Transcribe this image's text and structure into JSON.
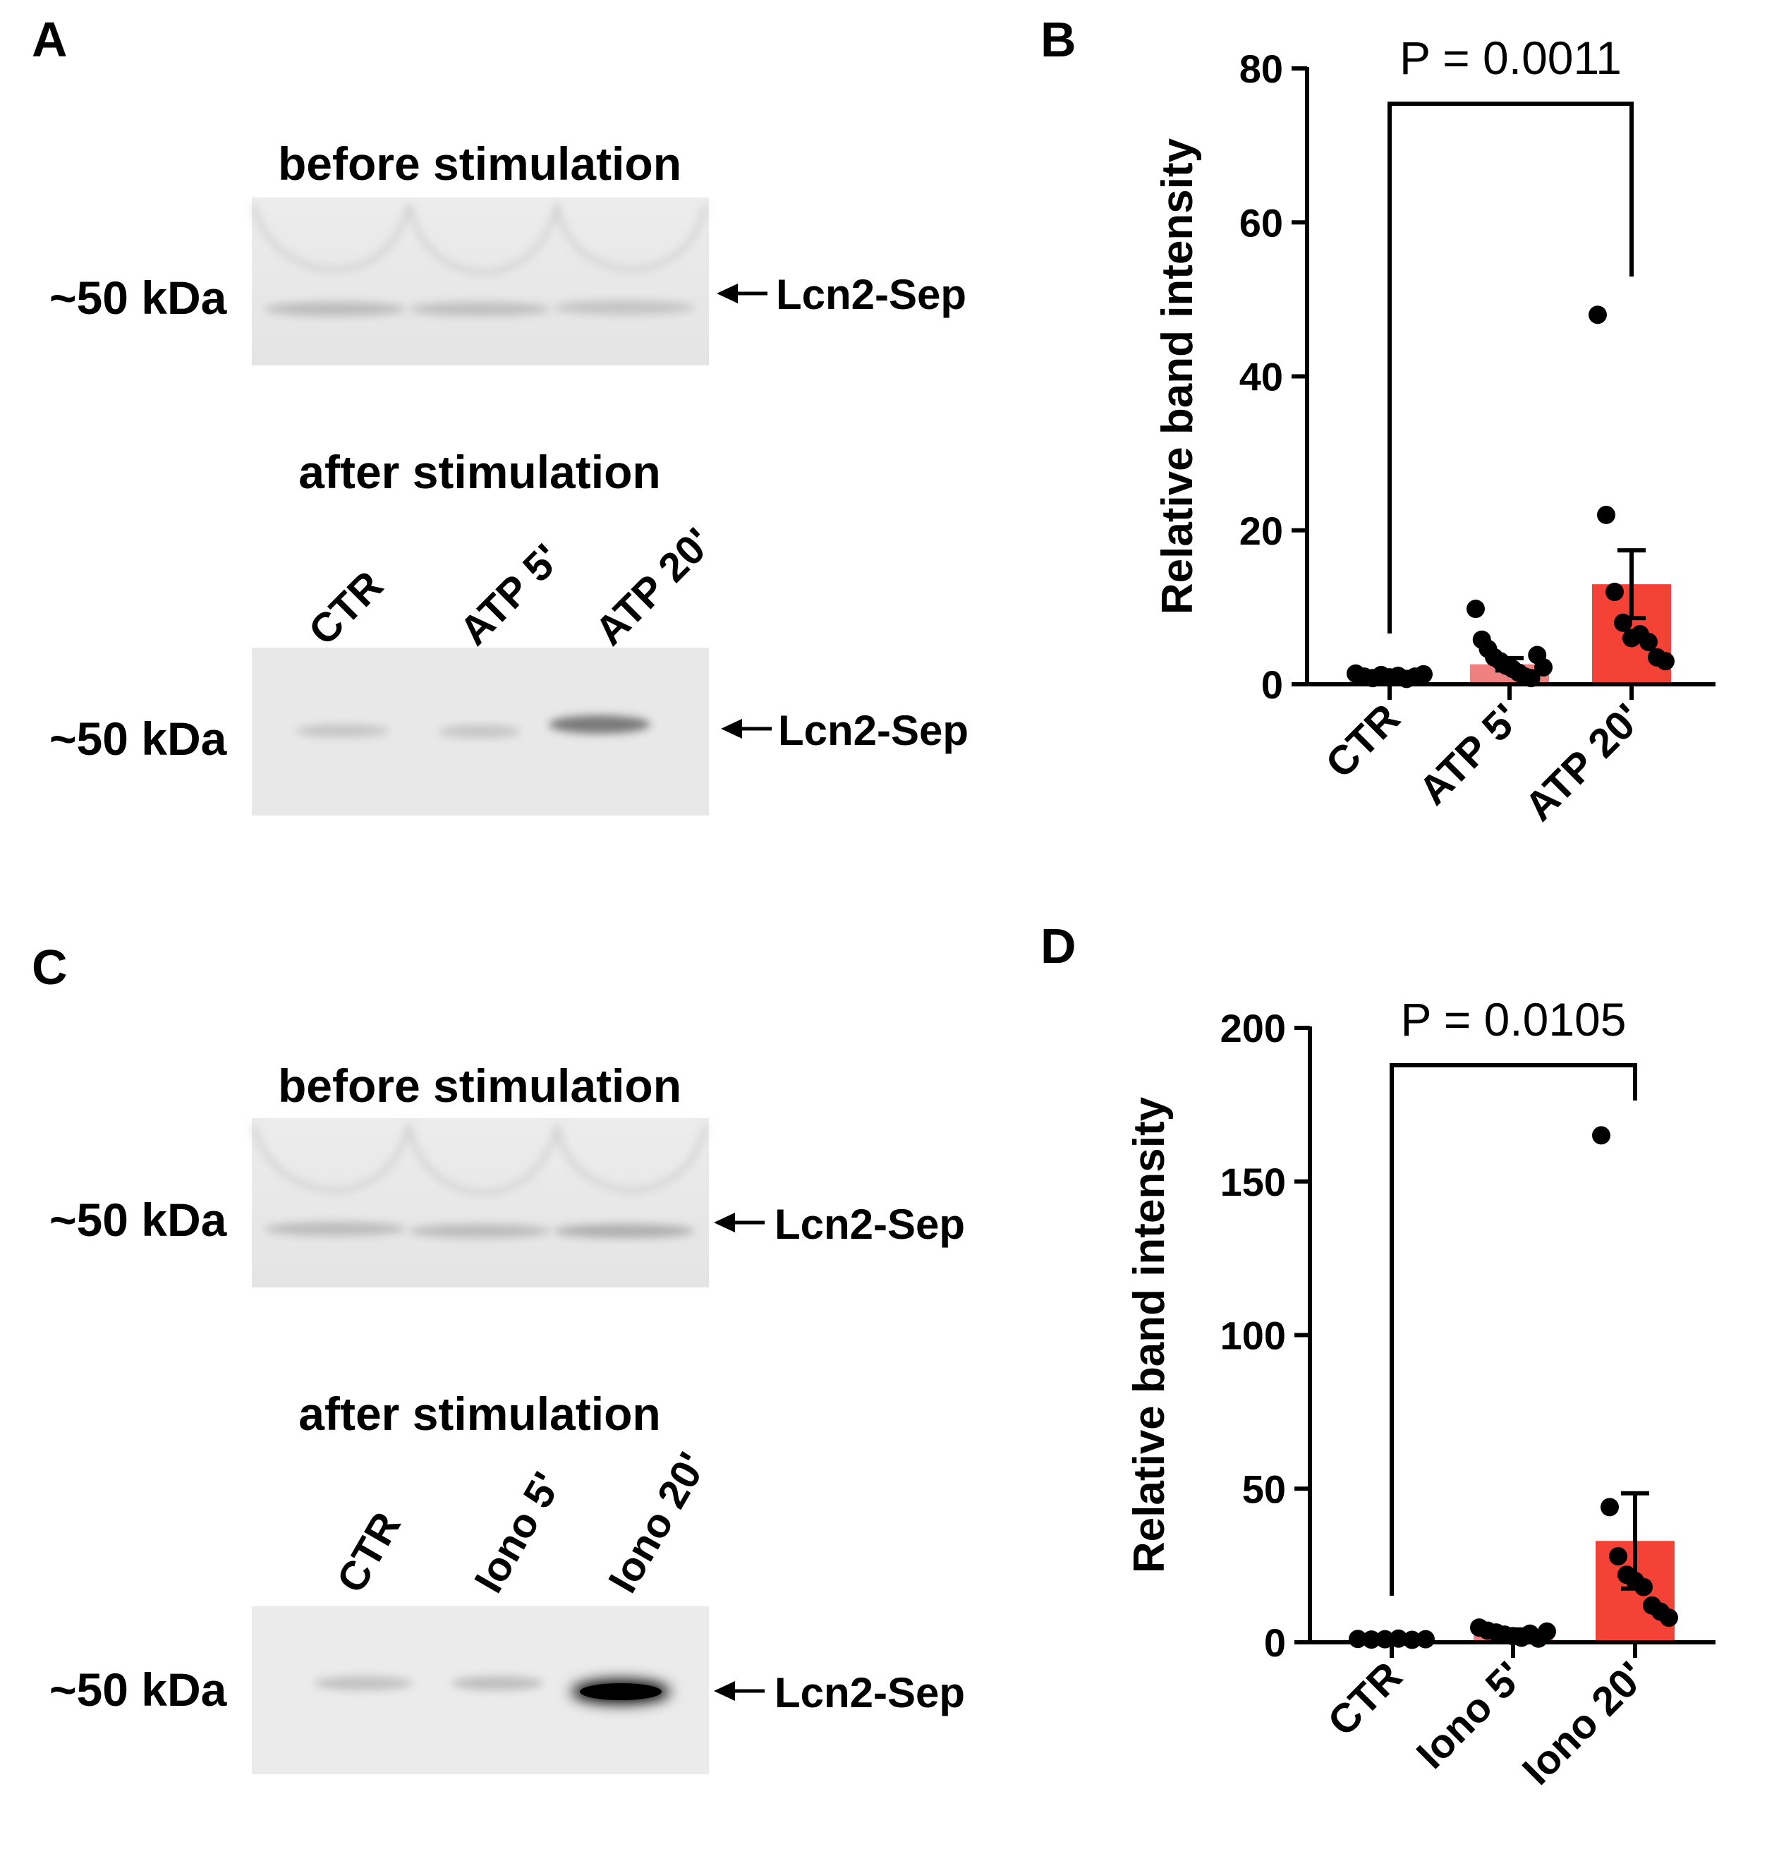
{
  "panels": {
    "A": {
      "label": "A",
      "before": {
        "title": "before stimulation",
        "kda": "~50 kDa",
        "band": "Lcn2-Sep"
      },
      "after": {
        "title": "after stimulation",
        "kda": "~50 kDa",
        "band": "Lcn2-Sep",
        "lanes": [
          "CTR",
          "ATP 5'",
          "ATP 20'"
        ]
      }
    },
    "B": {
      "label": "B"
    },
    "C": {
      "label": "C",
      "before": {
        "title": "before stimulation",
        "kda": "~50 kDa",
        "band": "Lcn2-Sep"
      },
      "after": {
        "title": "after stimulation",
        "kda": "~50 kDa",
        "band": "Lcn2-Sep",
        "lanes": [
          "CTR",
          "Iono 5'",
          "Iono 20'"
        ]
      }
    },
    "D": {
      "label": "D"
    }
  },
  "chart_data": [
    {
      "panel": "B",
      "type": "bar",
      "categories": [
        "CTR",
        "ATP 5'",
        "ATP 20'"
      ],
      "values": [
        1.0,
        2.6,
        13.0
      ],
      "error_upper": [
        1.2,
        3.4,
        17.4
      ],
      "error_lower": [
        0.8,
        1.8,
        8.6
      ],
      "points": [
        [
          1.4,
          1.0,
          0.8,
          1.2,
          0.9,
          1.1,
          0.7,
          1.0,
          1.3
        ],
        [
          9.8,
          5.8,
          4.6,
          3.5,
          3.0,
          2.4,
          2.0,
          1.5,
          1.0,
          0.8,
          3.8,
          2.2
        ],
        [
          48.0,
          22.0,
          12.0,
          8.0,
          6.0,
          6.5,
          5.5,
          3.5,
          3.0
        ]
      ],
      "bar_colors": [
        "#b3b3b3",
        "#f08080",
        "#f44336"
      ],
      "title": "",
      "xlabel": "",
      "ylabel": "Relative band intensity",
      "ylim": [
        0,
        80
      ],
      "yticks": [
        0,
        20,
        40,
        60,
        80
      ],
      "annotation": {
        "text": "P = 0.0011",
        "from": 0,
        "to": 2
      }
    },
    {
      "panel": "D",
      "type": "bar",
      "categories": [
        "CTR",
        "Iono 5'",
        "Iono 20'"
      ],
      "values": [
        1.0,
        3.5,
        33.0
      ],
      "error_upper": [
        1.2,
        4.2,
        48.5
      ],
      "error_lower": [
        0.8,
        2.8,
        17.5
      ],
      "points": [
        [
          1.1,
          0.9,
          1.0,
          1.2,
          0.8,
          1.0
        ],
        [
          4.8,
          3.8,
          3.2,
          2.5,
          2.0,
          1.5,
          2.8,
          1.2,
          3.5
        ],
        [
          165.0,
          44.0,
          28.0,
          22.0,
          20.0,
          18.0,
          12.0,
          10.0,
          8.0
        ]
      ],
      "bar_colors": [
        "#b3b3b3",
        "#f08080",
        "#f44336"
      ],
      "title": "",
      "xlabel": "",
      "ylabel": "Relative band intensity",
      "ylim": [
        0,
        200
      ],
      "yticks": [
        0,
        50,
        100,
        150,
        200
      ],
      "annotation": {
        "text": "P = 0.0105",
        "from": 0,
        "to": 2
      }
    }
  ]
}
